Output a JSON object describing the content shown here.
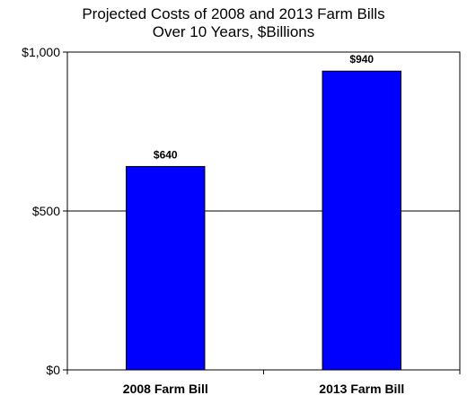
{
  "chart_data": {
    "type": "bar",
    "title": [
      "Projected Costs of 2008 and 2013 Farm Bills",
      "Over 10 Years, $Billions"
    ],
    "categories": [
      "2008 Farm Bill",
      "2013 Farm Bill"
    ],
    "values": [
      640,
      940
    ],
    "data_labels": [
      "$640",
      "$940"
    ],
    "ylim": [
      0,
      1000
    ],
    "yticks": [
      0,
      500,
      1000
    ],
    "ytick_labels": [
      "$0",
      "$500",
      "$1,000"
    ],
    "grid": "horizontal at $500",
    "legend": "none",
    "colors": {
      "bar": "#0000ff",
      "bar_outline": "#000000",
      "axis": "#000000"
    }
  }
}
